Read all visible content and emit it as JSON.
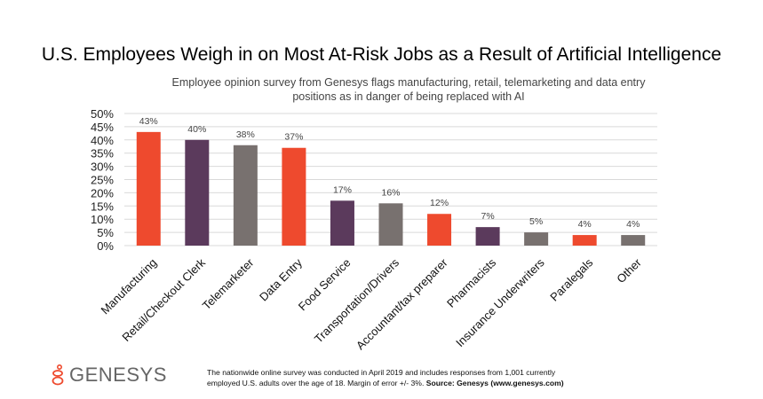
{
  "chart_data": {
    "type": "bar",
    "title": "U.S. Employees Weigh in on Most At-Risk Jobs as a Result of Artificial Intelligence",
    "subtitle": "Employee opinion survey from Genesys flags manufacturing, retail, telemarketing and data entry positions as in danger of being replaced with AI",
    "categories": [
      "Manufacturing",
      "Retail/Checkout Clerk",
      "Telemarketer",
      "Data Entry",
      "Food Service",
      "Transportation/Drivers",
      "Accountant/tax preparer",
      "Pharmacists",
      "Insurance Underwriters",
      "Paralegals",
      "Other"
    ],
    "values": [
      43,
      40,
      38,
      37,
      17,
      16,
      12,
      7,
      5,
      4,
      4
    ],
    "data_labels": [
      "43%",
      "40%",
      "38%",
      "37%",
      "17%",
      "16%",
      "12%",
      "7%",
      "5%",
      "4%",
      "4%"
    ],
    "bar_colors": [
      "#EE4A2E",
      "#5B3A5C",
      "#78716F",
      "#EE4A2E",
      "#5B3A5C",
      "#78716F",
      "#EE4A2E",
      "#5B3A5C",
      "#78716F",
      "#EE4A2E",
      "#78716F"
    ],
    "ylim": [
      0,
      50
    ],
    "yticks": [
      "0%",
      "5%",
      "10%",
      "15%",
      "20%",
      "25%",
      "30%",
      "35%",
      "40%",
      "45%",
      "50%"
    ],
    "grid": true,
    "xlabel": "",
    "ylabel": ""
  },
  "footer": {
    "logo": "GENESYS",
    "note": "The nationwide online survey was conducted in April 2019 and includes responses from 1,001 currently employed U.S. adults over the age of 18. Margin of error +/- 3%.",
    "source": "Source: Genesys (www.genesys.com)"
  },
  "colors": {
    "brand_orange": "#EE4A2E"
  }
}
